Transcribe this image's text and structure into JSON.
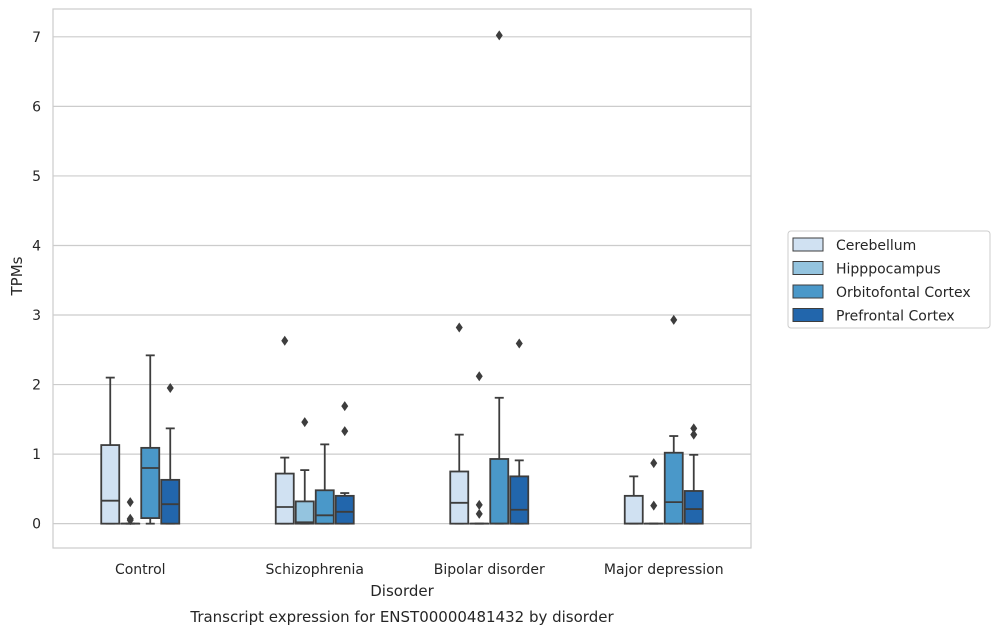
{
  "chart_data": {
    "type": "box",
    "caption": "Transcript expression for ENST00000481432 by disorder",
    "xlabel": "Disorder",
    "ylabel": "TPMs",
    "ylim": [
      -0.35,
      7.4
    ],
    "yticks": [
      0,
      1,
      2,
      3,
      4,
      5,
      6,
      7
    ],
    "grid": "horizontal",
    "legend_position": "right-outside",
    "categories": [
      "Control",
      "Schizophrenia",
      "Bipolar disorder",
      "Major depression"
    ],
    "series": [
      {
        "name": "Cerebellum",
        "color": "#d0e1f2",
        "boxes": [
          {
            "whislo": 0,
            "q1": 0,
            "med": 0.33,
            "q3": 1.13,
            "whishi": 2.1,
            "fliers": []
          },
          {
            "whislo": 0,
            "q1": 0,
            "med": 0.24,
            "q3": 0.72,
            "whishi": 0.95,
            "fliers": [
              2.63
            ]
          },
          {
            "whislo": 0,
            "q1": 0,
            "med": 0.3,
            "q3": 0.75,
            "whishi": 1.28,
            "fliers": [
              2.82
            ]
          },
          {
            "whislo": 0,
            "q1": 0,
            "med": 0,
            "q3": 0.4,
            "whishi": 0.68,
            "fliers": []
          }
        ]
      },
      {
        "name": "Hipppocampus",
        "color": "#94c4df",
        "boxes": [
          {
            "whislo": 0,
            "q1": 0,
            "med": 0,
            "q3": 0,
            "whishi": 0,
            "fliers": [
              0.31,
              0.05,
              0.07
            ]
          },
          {
            "whislo": 0,
            "q1": 0,
            "med": 0.02,
            "q3": 0.32,
            "whishi": 0.77,
            "fliers": [
              1.46
            ]
          },
          {
            "whislo": 0,
            "q1": 0,
            "med": 0,
            "q3": 0,
            "whishi": 0,
            "fliers": [
              0.27,
              0.14,
              2.12
            ]
          },
          {
            "whislo": 0,
            "q1": 0,
            "med": 0,
            "q3": 0,
            "whishi": 0,
            "fliers": [
              0.87,
              0.26
            ]
          }
        ]
      },
      {
        "name": "Orbitofontal Cortex",
        "color": "#4a98c9",
        "boxes": [
          {
            "whislo": 0,
            "q1": 0.08,
            "med": 0.8,
            "q3": 1.09,
            "whishi": 2.42,
            "fliers": []
          },
          {
            "whislo": 0,
            "q1": 0,
            "med": 0.12,
            "q3": 0.48,
            "whishi": 1.14,
            "fliers": []
          },
          {
            "whislo": 0,
            "q1": 0,
            "med": 0,
            "q3": 0.93,
            "whishi": 1.81,
            "fliers": [
              7.02
            ]
          },
          {
            "whislo": 0,
            "q1": 0,
            "med": 0.31,
            "q3": 1.02,
            "whishi": 1.26,
            "fliers": [
              2.93
            ]
          }
        ]
      },
      {
        "name": "Prefrontal Cortex",
        "color": "#2266ac",
        "boxes": [
          {
            "whislo": 0,
            "q1": 0,
            "med": 0.28,
            "q3": 0.63,
            "whishi": 1.37,
            "fliers": [
              1.95
            ]
          },
          {
            "whislo": 0,
            "q1": 0,
            "med": 0.17,
            "q3": 0.4,
            "whishi": 0.44,
            "fliers": [
              1.69,
              1.33
            ]
          },
          {
            "whislo": 0,
            "q1": 0,
            "med": 0.2,
            "q3": 0.68,
            "whishi": 0.91,
            "fliers": [
              2.59
            ]
          },
          {
            "whislo": 0,
            "q1": 0,
            "med": 0.21,
            "q3": 0.47,
            "whishi": 0.99,
            "fliers": [
              1.37,
              1.28
            ]
          }
        ]
      }
    ]
  }
}
